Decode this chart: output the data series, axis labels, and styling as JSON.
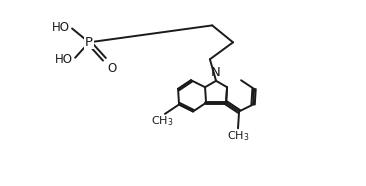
{
  "background": "#ffffff",
  "line_color": "#1a1a1a",
  "line_width": 1.4,
  "font_size": 8.5,
  "figsize": [
    3.66,
    1.86
  ],
  "dpi": 100,
  "xlim": [
    0,
    3.66
  ],
  "ylim": [
    0,
    1.86
  ]
}
